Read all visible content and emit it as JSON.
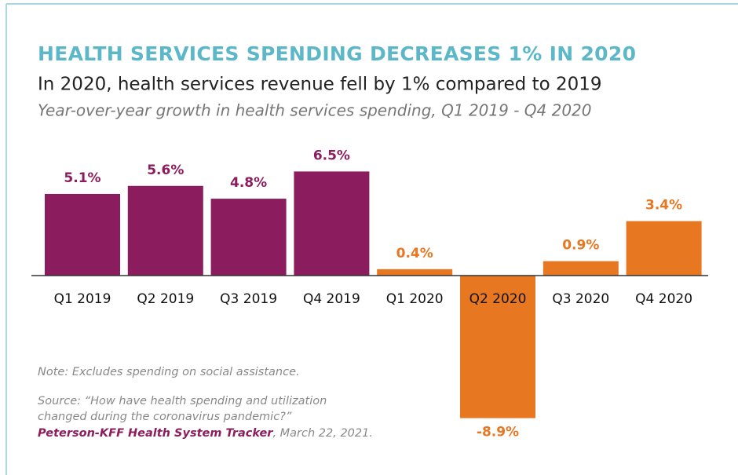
{
  "chart_data": {
    "type": "bar",
    "title": "HEALTH SERVICES SPENDING DECREASES 1% IN 2020",
    "subtitle": "In 2020, health services revenue fell by 1% compared to 2019",
    "description": "Year-over-year growth in health services spending, Q1 2019 - Q4 2020",
    "categories": [
      "Q1 2019",
      "Q2 2019",
      "Q3 2019",
      "Q4 2019",
      "Q1 2020",
      "Q2 2020",
      "Q3 2020",
      "Q4 2020"
    ],
    "values": [
      5.1,
      5.6,
      4.8,
      6.5,
      0.4,
      -8.9,
      0.9,
      3.4
    ],
    "value_labels": [
      "5.1%",
      "5.6%",
      "4.8%",
      "6.5%",
      "0.4%",
      "-8.9%",
      "0.9%",
      "3.4%"
    ],
    "colors": [
      "#8b1d5e",
      "#8b1d5e",
      "#8b1d5e",
      "#8b1d5e",
      "#e87722",
      "#e87722",
      "#e87722",
      "#e87722"
    ],
    "note": "Note: Excludes spending on social assistance.",
    "source": [
      "Source: “How have health spending and utilization",
      "changed during the coronavirus pandemic?”",
      "Peterson-KFF Health System Tracker",
      ", March 22, 2021."
    ]
  }
}
